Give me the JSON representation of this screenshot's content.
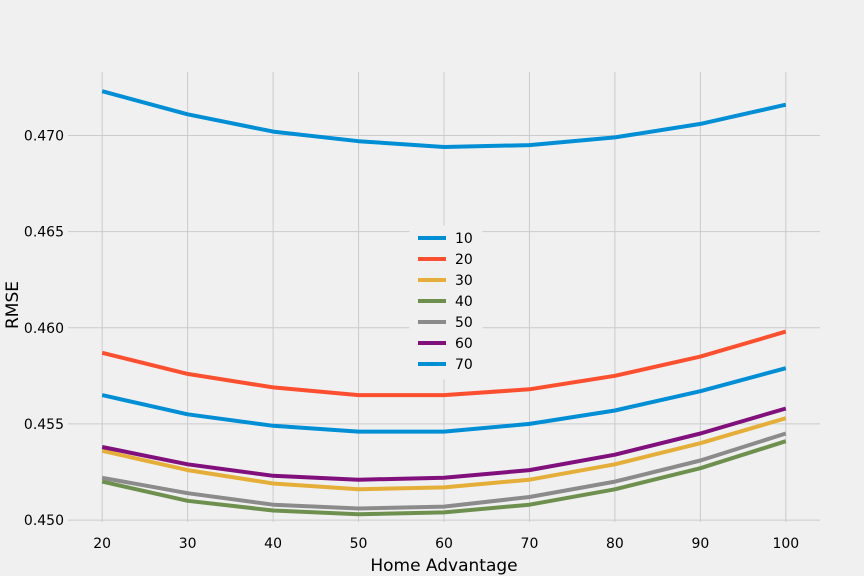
{
  "chart_data": {
    "type": "line",
    "title": "",
    "xlabel": "Home Advantage",
    "ylabel": "RMSE",
    "x": [
      20,
      30,
      40,
      50,
      60,
      70,
      80,
      90,
      100
    ],
    "xticks": [
      "20",
      "30",
      "40",
      "50",
      "60",
      "70",
      "80",
      "90",
      "100"
    ],
    "yticks": [
      "0.450",
      "0.455",
      "0.460",
      "0.465",
      "0.470"
    ],
    "xlim": [
      16,
      104
    ],
    "ylim": [
      0.4499,
      0.4733
    ],
    "grid": true,
    "legend_position": "center",
    "series": [
      {
        "name": "10",
        "color": "#008fd5",
        "values": [
          0.4723,
          0.4711,
          0.4702,
          0.4697,
          0.4694,
          0.4695,
          0.4699,
          0.4706,
          0.4716
        ]
      },
      {
        "name": "20",
        "color": "#fc4f30",
        "values": [
          0.4587,
          0.4576,
          0.4569,
          0.4565,
          0.4565,
          0.4568,
          0.4575,
          0.4585,
          0.4598
        ]
      },
      {
        "name": "30",
        "color": "#e5ae38",
        "values": [
          0.4536,
          0.4526,
          0.4519,
          0.4516,
          0.4517,
          0.4521,
          0.4529,
          0.454,
          0.4553
        ]
      },
      {
        "name": "40",
        "color": "#6d904f",
        "values": [
          0.452,
          0.451,
          0.4505,
          0.4503,
          0.4504,
          0.4508,
          0.4516,
          0.4527,
          0.4541
        ]
      },
      {
        "name": "50",
        "color": "#8b8b8b",
        "values": [
          0.4522,
          0.4514,
          0.4508,
          0.4506,
          0.4507,
          0.4512,
          0.452,
          0.4531,
          0.4545
        ]
      },
      {
        "name": "60",
        "color": "#810f7c",
        "values": [
          0.4538,
          0.4529,
          0.4523,
          0.4521,
          0.4522,
          0.4526,
          0.4534,
          0.4545,
          0.4558
        ]
      },
      {
        "name": "70",
        "color": "#008fd5",
        "values": [
          0.4565,
          0.4555,
          0.4549,
          0.4546,
          0.4546,
          0.455,
          0.4557,
          0.4567,
          0.4579
        ]
      }
    ]
  }
}
